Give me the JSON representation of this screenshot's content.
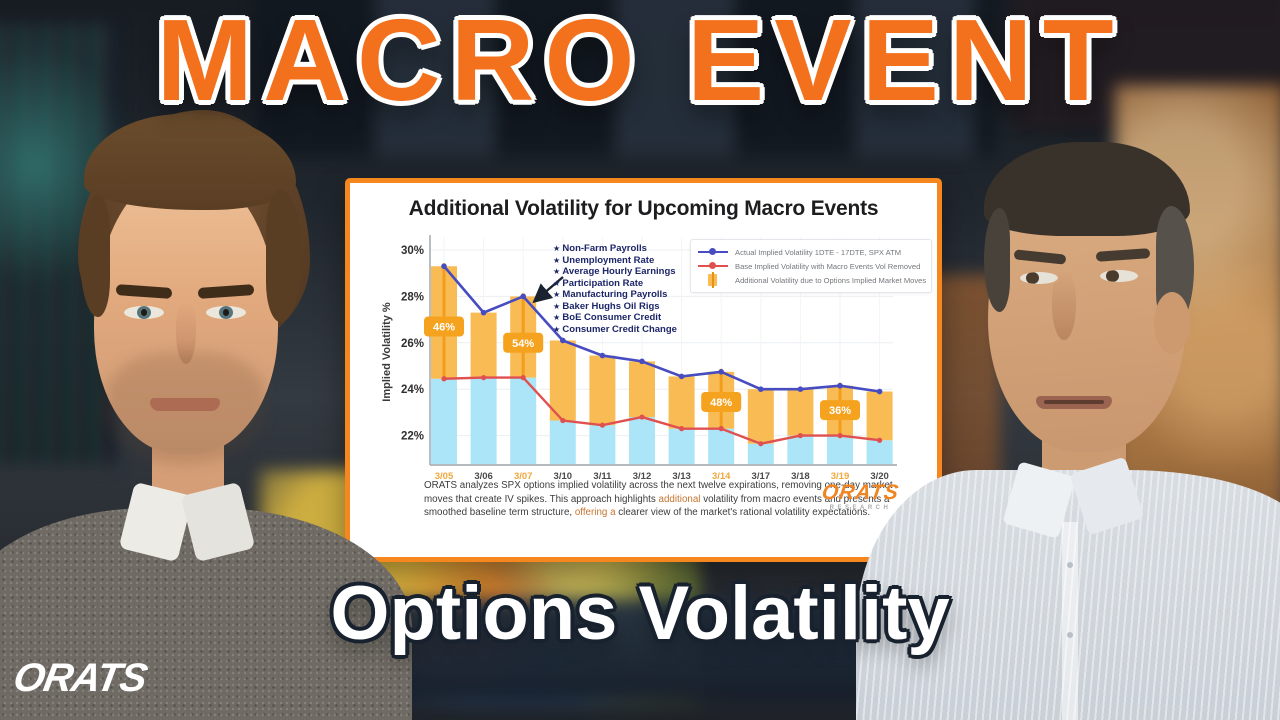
{
  "banner": {
    "title": "MACRO EVENT",
    "subtitle": "Options Volatility"
  },
  "watermark": {
    "brand": "ORATS"
  },
  "colors": {
    "accent_orange": "#f3711c",
    "card_border": "#f6871f",
    "actual_line": "#474cc0",
    "base_line": "#e05050",
    "additional_bar": "#f9bc55",
    "base_bar": "#abe5f7",
    "badge": "#f5a21f",
    "event_text_navy": "#1c2668"
  },
  "chart_card": {
    "title": "Additional Volatility for Upcoming Macro Events",
    "y_axis_label": "Implied Volatility %",
    "legend": [
      {
        "label": "Actual Implied Volatility 1DTE - 17DTE, SPX ATM",
        "color": "#474cc0",
        "marker": "line"
      },
      {
        "label": "Base Implied Volatility with Macro Events Vol Removed",
        "color": "#e05050",
        "marker": "line"
      },
      {
        "label": "Additional Volatility due to Options Implied Market Moves",
        "color": "#f9bc55",
        "marker": "bar"
      }
    ],
    "event_list": [
      "Non-Farm Payrolls",
      "Unemployment Rate",
      "Average Hourly Earnings",
      "Participation Rate",
      "Manufacturing Payrolls",
      "Baker Hughs Oil Rigs",
      "BoE Consumer Credit",
      "Consumer Credit Change"
    ],
    "footnote_segments": [
      {
        "text": "ORATS analyzes SPX options implied volatility across the next twelve expirations, removing one-day market moves that create IV spikes. This approach highlights ",
        "highlight": false
      },
      {
        "text": "additional",
        "highlight": true
      },
      {
        "text": " volatility from macro events and presents a smoothed baseline term structure, ",
        "highlight": false
      },
      {
        "text": "offering a",
        "highlight": true
      },
      {
        "text": " clearer view of the market's rational volatility expectations.",
        "highlight": false
      }
    ],
    "footnote_highlight_color": "#c4752f",
    "logo": {
      "brand": "ORATS",
      "sub": "RESEARCH"
    }
  },
  "chart_data": {
    "type": "line",
    "title": "Additional Volatility for Upcoming Macro Events",
    "xlabel": "",
    "ylabel": "Implied Volatility %",
    "ylim": [
      20.7,
      30.4
    ],
    "yticks": [
      30,
      28,
      26,
      24,
      22
    ],
    "ytick_suffix": "%",
    "grid": true,
    "legend_position": "top-right",
    "categories": [
      "3/05",
      "3/06",
      "3/07",
      "3/10",
      "3/11",
      "3/12",
      "3/13",
      "3/14",
      "3/17",
      "3/18",
      "3/19",
      "3/20"
    ],
    "highlighted_categories": [
      "3/05",
      "3/07",
      "3/14",
      "3/19"
    ],
    "series": [
      {
        "name": "Actual Implied Volatility 1DTE - 17DTE, SPX ATM",
        "type": "line",
        "color": "#474cc0",
        "values": [
          29.3,
          27.3,
          28.0,
          26.1,
          25.45,
          25.2,
          24.55,
          24.75,
          24.0,
          24.0,
          24.15,
          23.9
        ]
      },
      {
        "name": "Base Implied Volatility with Macro Events Vol Removed",
        "type": "line",
        "color": "#e05050",
        "values": [
          24.45,
          24.5,
          24.5,
          22.65,
          22.45,
          22.8,
          22.3,
          22.3,
          21.65,
          22.0,
          22.0,
          21.8
        ]
      },
      {
        "name": "Additional Volatility due to Options Implied Market Moves",
        "type": "bar",
        "color": "#f9bc55",
        "note": "bars span from base implied volatility up to actual implied volatility"
      }
    ],
    "base_bar_color": "#abe5f7",
    "add_bar_color": "#f9bc55",
    "badges": [
      {
        "category": "3/05",
        "label": "46%",
        "value": 26.7
      },
      {
        "category": "3/07",
        "label": "54%",
        "value": 26.0
      },
      {
        "category": "3/14",
        "label": "48%",
        "value": 23.45
      },
      {
        "category": "3/19",
        "label": "36%",
        "value": 23.1
      }
    ]
  }
}
